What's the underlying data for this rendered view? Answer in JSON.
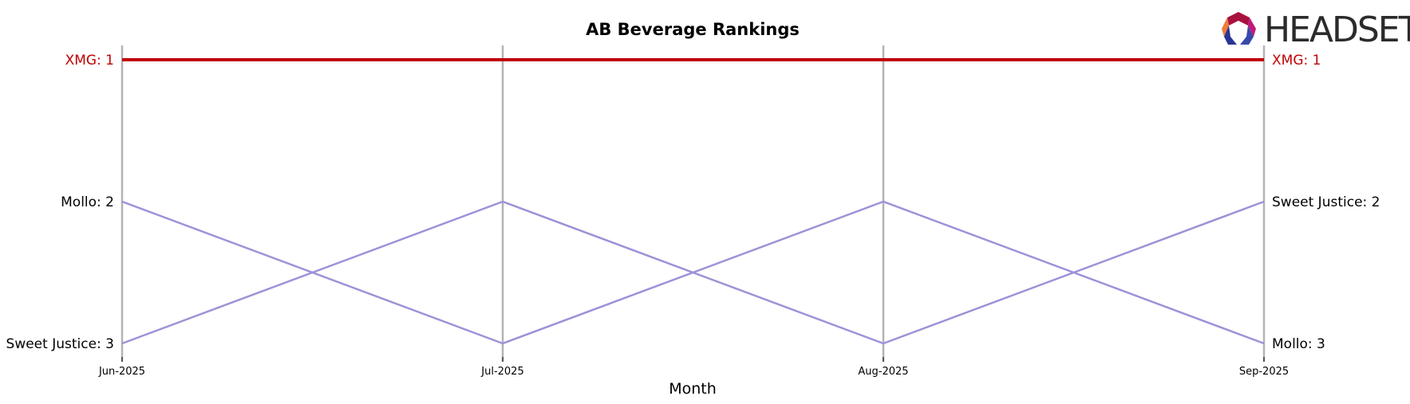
{
  "chart_data": {
    "type": "line",
    "title": "AB Beverage Rankings",
    "xlabel": "Month",
    "ylabel": "",
    "categories": [
      "Jun-2025",
      "Jul-2025",
      "Aug-2025",
      "Sep-2025"
    ],
    "y_inverted": true,
    "ylim": [
      1,
      3
    ],
    "grid": false,
    "series": [
      {
        "name": "XMG",
        "values": [
          1,
          1,
          1,
          1
        ],
        "color": "#c00000",
        "highlight": true
      },
      {
        "name": "Mollo",
        "values": [
          2,
          3,
          2,
          3
        ],
        "color": "#9b93d8",
        "highlight": false
      },
      {
        "name": "Sweet Justice",
        "values": [
          3,
          2,
          3,
          2
        ],
        "color": "#9b93d8",
        "highlight": false
      }
    ],
    "start_labels": [
      {
        "text": "XMG: 1",
        "rank": 1,
        "color": "#c00000"
      },
      {
        "text": "Mollo: 2",
        "rank": 2,
        "color": "#000000"
      },
      {
        "text": "Sweet Justice: 3",
        "rank": 3,
        "color": "#000000"
      }
    ],
    "end_labels": [
      {
        "text": "XMG: 1",
        "rank": 1,
        "color": "#c00000"
      },
      {
        "text": "Sweet Justice: 2",
        "rank": 2,
        "color": "#000000"
      },
      {
        "text": "Mollo: 3",
        "rank": 3,
        "color": "#000000"
      }
    ]
  },
  "logo": {
    "text": "HEADSET"
  },
  "colors": {
    "axis_line": "#b3b3b3",
    "highlight": "#c00000",
    "other": "#9b93d8"
  }
}
